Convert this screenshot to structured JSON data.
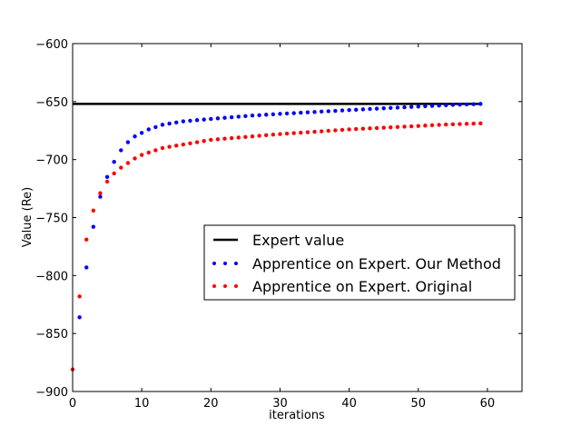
{
  "chart_data": {
    "type": "scatter",
    "title": "",
    "xlabel": "iterations",
    "ylabel": "Value (Re)",
    "xlim": [
      0,
      65
    ],
    "ylim": [
      -900,
      -600
    ],
    "xticks": [
      0,
      10,
      20,
      30,
      40,
      50,
      60
    ],
    "yticks": [
      -900,
      -850,
      -800,
      -750,
      -700,
      -650,
      -600
    ],
    "grid": false,
    "legend_position": "center-right",
    "series": [
      {
        "name": "Expert value",
        "style": "line",
        "color": "#000000",
        "x": [
          0,
          59
        ],
        "y": [
          -652,
          -652
        ]
      },
      {
        "name": "Apprentice on Expert. Our Method",
        "style": "dots",
        "color": "#0000ff",
        "x": [
          1,
          2,
          3,
          4,
          5,
          6,
          7,
          8,
          9,
          10,
          11,
          12,
          13,
          14,
          15,
          16,
          17,
          18,
          19,
          20,
          21,
          22,
          23,
          24,
          25,
          26,
          27,
          28,
          29,
          30,
          31,
          32,
          33,
          34,
          35,
          36,
          37,
          38,
          39,
          40,
          41,
          42,
          43,
          44,
          45,
          46,
          47,
          48,
          49,
          50,
          51,
          52,
          53,
          54,
          55,
          56,
          57,
          58,
          59
        ],
        "y": [
          -836,
          -793,
          -758,
          -732,
          -715,
          -702,
          -692,
          -685,
          -680,
          -677,
          -674,
          -672,
          -670,
          -669,
          -668,
          -667,
          -666.5,
          -666,
          -665.5,
          -665,
          -664.5,
          -664,
          -663.5,
          -663,
          -662.5,
          -662,
          -661.7,
          -661.3,
          -661,
          -660.6,
          -660.3,
          -660,
          -659.6,
          -659.3,
          -659,
          -658.6,
          -658.3,
          -658,
          -657.6,
          -657.3,
          -657,
          -656.7,
          -656.4,
          -656.1,
          -655.8,
          -655.5,
          -655.2,
          -654.9,
          -654.6,
          -654.3,
          -654,
          -653.7,
          -653.4,
          -653.1,
          -652.8,
          -652.6,
          -652.4,
          -652.2,
          -652
        ]
      },
      {
        "name": "Apprentice on Expert. Original",
        "style": "dots",
        "color": "#ff0000",
        "x": [
          0,
          1,
          2,
          3,
          4,
          5,
          6,
          7,
          8,
          9,
          10,
          11,
          12,
          13,
          14,
          15,
          16,
          17,
          18,
          19,
          20,
          21,
          22,
          23,
          24,
          25,
          26,
          27,
          28,
          29,
          30,
          31,
          32,
          33,
          34,
          35,
          36,
          37,
          38,
          39,
          40,
          41,
          42,
          43,
          44,
          45,
          46,
          47,
          48,
          49,
          50,
          51,
          52,
          53,
          54,
          55,
          56,
          57,
          58,
          59
        ],
        "y": [
          -881,
          -818,
          -769,
          -744,
          -729,
          -719,
          -712,
          -707,
          -703,
          -699,
          -696,
          -694,
          -692,
          -690,
          -689,
          -688,
          -687,
          -686,
          -685,
          -684,
          -683,
          -682.5,
          -682,
          -681.5,
          -681,
          -680.5,
          -680,
          -679.5,
          -679,
          -678.5,
          -678,
          -677.6,
          -677.2,
          -676.8,
          -676.4,
          -676,
          -675.6,
          -675.2,
          -674.8,
          -674.4,
          -674,
          -673.7,
          -673.4,
          -673.1,
          -672.8,
          -672.5,
          -672.2,
          -671.9,
          -671.6,
          -671.3,
          -671,
          -670.7,
          -670.4,
          -670.1,
          -669.8,
          -669.6,
          -669.4,
          -669.2,
          -669,
          -668.8
        ]
      }
    ]
  }
}
